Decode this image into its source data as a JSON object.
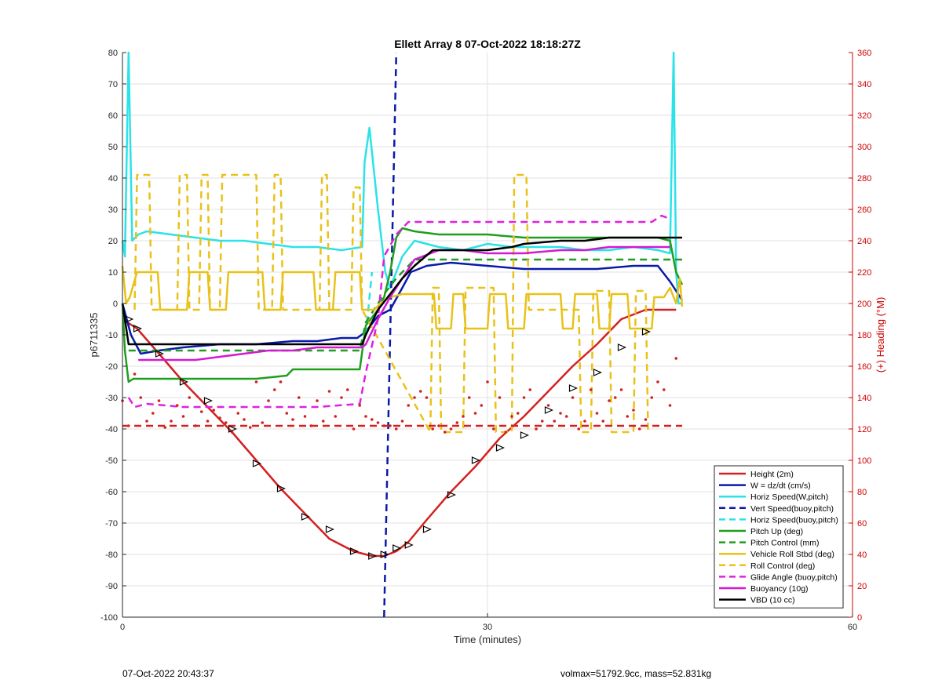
{
  "chart_data": {
    "type": "line",
    "title": "Ellett Array 8 07-Oct-2022 18:18:27Z",
    "xlabel": "Time (minutes)",
    "ylabel": "p6711335",
    "y2label": "(+) Heading (°M)",
    "xlim": [
      0,
      60
    ],
    "ylim": [
      -100,
      80
    ],
    "y2lim": [
      0,
      360
    ],
    "xticks": [
      "0",
      "30",
      "60"
    ],
    "yticks": [
      "80",
      "70",
      "60",
      "50",
      "40",
      "30",
      "20",
      "10",
      "0",
      "-10",
      "-20",
      "-30",
      "-40",
      "-50",
      "-60",
      "-70",
      "-80",
      "-90",
      "-100"
    ],
    "y2ticks": [
      "360",
      "340",
      "320",
      "300",
      "280",
      "260",
      "240",
      "220",
      "200",
      "180",
      "160",
      "140",
      "120",
      "100",
      "80",
      "60",
      "40",
      "20",
      "0"
    ],
    "grid": true,
    "legend_position": "bottom-right",
    "series": [
      {
        "name": "Height (2m)",
        "color": "#d42020",
        "style": "solid",
        "x": [
          0,
          1.2,
          3,
          5,
          7,
          9,
          11,
          13,
          15,
          17,
          19,
          20.5,
          21.5,
          22.5,
          23.5,
          25,
          27,
          29,
          31,
          33,
          35,
          37,
          39,
          41,
          43,
          44.5,
          45.5
        ],
        "y": [
          -5,
          -8,
          -16,
          -25,
          -33,
          -41,
          -50,
          -59,
          -67,
          -75,
          -79,
          -80.5,
          -80.5,
          -79,
          -76,
          -69,
          -60,
          -52,
          -43,
          -36,
          -28,
          -20,
          -13,
          -5,
          -2,
          -2,
          -2
        ]
      },
      {
        "name": "W = dz/dt (cm/s)",
        "color": "#0a1aa8",
        "style": "solid",
        "x": [
          0,
          0.7,
          1.5,
          3,
          5,
          8,
          11,
          14,
          16,
          18,
          19.3,
          20,
          21,
          22,
          23,
          23.7,
          25,
          27,
          30,
          33,
          36,
          39,
          42,
          44,
          45,
          45.5,
          46
        ],
        "y": [
          0,
          -10,
          -16,
          -15,
          -14,
          -13,
          -13,
          -12,
          -12,
          -11,
          -11,
          -9,
          -4,
          -2,
          5,
          10,
          12,
          13,
          12,
          11,
          11,
          11,
          12,
          12,
          7,
          4,
          1
        ]
      },
      {
        "name": "Horiz Speed(W,pitch)",
        "color": "#29e3e8",
        "style": "solid",
        "x": [
          0,
          0.2,
          0.5,
          0.8,
          1.3,
          2,
          4,
          6,
          8,
          10,
          12,
          14,
          16,
          18,
          19.7,
          19.9,
          20.3,
          21,
          21.6,
          22,
          23,
          24,
          26,
          28,
          30,
          32,
          34,
          36,
          38,
          40,
          42,
          44,
          45,
          45.3,
          45.5,
          45.7,
          46
        ],
        "y": [
          20,
          15,
          80,
          20,
          22,
          23,
          22,
          21,
          20,
          20,
          19,
          18,
          18,
          17,
          18,
          45,
          56,
          30,
          10,
          5,
          15,
          20,
          18,
          17,
          19,
          18,
          18,
          18,
          17,
          17,
          18,
          17,
          16,
          80,
          10,
          0,
          0
        ]
      },
      {
        "name": "Vert Speed(buoy,pitch)",
        "color": "#0a1aa8",
        "style": "dashed",
        "x": [
          21.5,
          22.5
        ],
        "y": [
          -100,
          80
        ]
      },
      {
        "name": "Horiz Speed(buoy,pitch)",
        "color": "#29e3e8",
        "style": "dashed",
        "x": [
          20,
          20.5
        ],
        "y": [
          -10,
          10
        ]
      },
      {
        "name": "Pitch Up (deg)",
        "color": "#1f9e1f",
        "style": "solid",
        "x": [
          0,
          0.2,
          0.5,
          0.9,
          2,
          5,
          8,
          11,
          13.5,
          14,
          17,
          19.5,
          20,
          21,
          21.5,
          22,
          22.5,
          23,
          24,
          26,
          28,
          30,
          33,
          36,
          39,
          42,
          44,
          45,
          45.5,
          46
        ],
        "y": [
          0,
          -15,
          -25,
          -24,
          -24,
          -24,
          -24,
          -24,
          -23,
          -21,
          -21,
          -21,
          -7,
          -2,
          2,
          10,
          21,
          24,
          23,
          22,
          22,
          22,
          21,
          21,
          21,
          21,
          21,
          20,
          10,
          6
        ]
      },
      {
        "name": "Pitch Control (mm)",
        "color": "#1f9e1f",
        "style": "dashed",
        "x": [
          0.5,
          6,
          12,
          19.5,
          20,
          21.5,
          22.5,
          24,
          30,
          38,
          46
        ],
        "y": [
          -15,
          -15,
          -15,
          -15,
          -6,
          3,
          8,
          14,
          14,
          14,
          14
        ]
      },
      {
        "name": "Vehicle Roll Stbd (deg)",
        "color": "#e8c21a",
        "style": "solid",
        "x": [
          0,
          0.3,
          0.6,
          1.2,
          2.9,
          3.1,
          5.3,
          5.5,
          7,
          7.2,
          8.5,
          8.7,
          11.5,
          11.7,
          13,
          13.2,
          15.7,
          15.9,
          17.3,
          17.5,
          19.5,
          19.7,
          20.7,
          21.2,
          22,
          23,
          24,
          25,
          25.6,
          25.8,
          27,
          27.2,
          28,
          28.2,
          30,
          30.2,
          31.5,
          31.7,
          33,
          33.2,
          36,
          36.2,
          37,
          37.2,
          39,
          39.2,
          40,
          40.2,
          41.5,
          41.7,
          43.5,
          43.7,
          44.5,
          45,
          45.5,
          45.8,
          46
        ],
        "y": [
          12,
          0,
          2,
          10,
          10,
          -2,
          -2,
          10,
          10,
          -2,
          -2,
          10,
          10,
          -2,
          -2,
          10,
          10,
          -2,
          -2,
          10,
          10,
          -2,
          -2,
          0,
          2,
          3,
          3,
          3,
          3,
          -8,
          -8,
          3,
          3,
          -8,
          -8,
          3,
          3,
          -8,
          -8,
          3,
          3,
          -8,
          -8,
          3,
          3,
          -8,
          -8,
          3,
          3,
          -8,
          -8,
          2,
          2,
          5,
          0,
          8,
          -1
        ]
      },
      {
        "name": "Roll Control (deg)",
        "color": "#e8c21a",
        "style": "dashed",
        "x": [
          1,
          1.2,
          2.2,
          2.4,
          4.5,
          4.7,
          5.3,
          5.5,
          6.3,
          6.5,
          7,
          7.2,
          8,
          8.2,
          11,
          11.2,
          12.3,
          12.5,
          13,
          13.2,
          16.2,
          16.4,
          16.8,
          17,
          18.8,
          19,
          19.5,
          19.7,
          25.3,
          25.5,
          26,
          26.2,
          28,
          28.2,
          30.5,
          30.7,
          32,
          32.2,
          33.2,
          33.4,
          37.5,
          37.7,
          38.5,
          38.7,
          40,
          40.2,
          42,
          42.2,
          43,
          43.2
        ],
        "y": [
          -2,
          41,
          41,
          -2,
          -2,
          41,
          41,
          -2,
          -2,
          41,
          41,
          -2,
          -2,
          41,
          41,
          -2,
          -2,
          41,
          41,
          -2,
          -2,
          41,
          41,
          -2,
          -2,
          37,
          37,
          -2,
          -41,
          5,
          5,
          -41,
          -41,
          5,
          5,
          -41,
          -41,
          41,
          41,
          -2,
          -2,
          -41,
          -41,
          4,
          4,
          -41,
          -41,
          4,
          4,
          -41
        ]
      },
      {
        "name": "Glide Angle (buoy,pitch)",
        "color": "#e020e0",
        "style": "dashed",
        "x": [
          0.5,
          1,
          2,
          5,
          8,
          12,
          16,
          19.5,
          20,
          21,
          21.5,
          22.5,
          23.5,
          24,
          26,
          28,
          30,
          33,
          36,
          39,
          42,
          43.5,
          44.3,
          45
        ],
        "y": [
          -30,
          -33,
          -32,
          -33,
          -33,
          -33,
          -33,
          -32,
          -22,
          -5,
          15,
          22,
          26,
          26,
          26,
          26,
          26,
          26,
          26,
          26,
          26,
          26,
          28,
          27
        ]
      },
      {
        "name": "Buoyancy (10g)",
        "color": "#d21ad2",
        "style": "solid",
        "x": [
          1.3,
          3,
          6,
          8,
          10,
          12,
          14,
          16,
          18,
          19.7,
          20,
          21,
          22,
          23,
          24,
          26,
          28,
          30,
          33,
          36,
          38,
          40,
          42,
          44,
          45
        ],
        "y": [
          -18,
          -18,
          -18,
          -17,
          -16,
          -15,
          -15,
          -14,
          -14,
          -14,
          -13,
          -5,
          2,
          8,
          14,
          17,
          17,
          16,
          16,
          17,
          17,
          18,
          18,
          18,
          18
        ]
      },
      {
        "name": "VBD (10 cc)",
        "color": "#000000",
        "style": "solid",
        "x": [
          0,
          0.2,
          0.5,
          1,
          2,
          5,
          8,
          12,
          16,
          19.7,
          20,
          21,
          22,
          23,
          24,
          25.5,
          26,
          28,
          30,
          32,
          33,
          36,
          38,
          40,
          42,
          44,
          46
        ],
        "y": [
          0,
          -5,
          -13,
          -13,
          -13,
          -13,
          -13,
          -13,
          -13,
          -13,
          -10,
          -2,
          3,
          8,
          12,
          17,
          17,
          17,
          17,
          18,
          19,
          20,
          20,
          21,
          21,
          21,
          21
        ]
      },
      {
        "name": "Heading",
        "color": "#d42020",
        "style": "dotted",
        "axis": "right",
        "x": [
          0,
          0.5,
          1,
          1.5,
          2,
          2.5,
          3,
          3.5,
          4,
          4.5,
          5,
          5.5,
          6,
          6.5,
          7,
          7.5,
          8,
          8.5,
          9,
          9.5,
          10,
          10.5,
          11,
          11.5,
          12,
          12.5,
          13,
          13.5,
          14,
          14.5,
          15,
          15.5,
          16,
          16.5,
          17,
          17.5,
          18,
          18.5,
          19,
          19.5,
          20,
          20.5,
          21,
          21.5,
          22,
          22.5,
          23,
          23.5,
          24,
          24.5,
          25,
          25.5,
          26,
          26.5,
          27,
          27.5,
          28,
          28.5,
          29,
          29.5,
          30,
          30.5,
          31,
          31.5,
          32,
          32.5,
          33,
          33.5,
          34,
          34.5,
          35,
          35.5,
          36,
          36.5,
          37,
          37.5,
          38,
          38.5,
          39,
          39.5,
          40,
          40.5,
          41,
          41.5,
          42,
          42.5,
          43,
          43.5,
          44,
          44.5,
          45,
          45.5
        ],
        "y": [
          138,
          122,
          155,
          140,
          125,
          130,
          138,
          121,
          125,
          135,
          128,
          140,
          122,
          131,
          125,
          132,
          127,
          124,
          118,
          130,
          126,
          121,
          150,
          124,
          138,
          145,
          150,
          130,
          126,
          140,
          128,
          122,
          138,
          125,
          144,
          128,
          140,
          145,
          120,
          135,
          128,
          126,
          124,
          122,
          122,
          120,
          125,
          135,
          140,
          144,
          140,
          120,
          122,
          118,
          120,
          124,
          128,
          140,
          130,
          135,
          150,
          120,
          140,
          118,
          128,
          130,
          140,
          145,
          120,
          125,
          135,
          125,
          130,
          128,
          140,
          120,
          125,
          145,
          130,
          125,
          138,
          140,
          145,
          128,
          132,
          120,
          126,
          140,
          150,
          145,
          135,
          165
        ]
      },
      {
        "name": "Heading ref",
        "color": "#d42020",
        "style": "dashed",
        "axis": "right",
        "x": [
          0,
          46
        ],
        "y": [
          122,
          122
        ]
      }
    ],
    "markers": {
      "name": "Height (2m) markers",
      "x": [
        0.5,
        1.2,
        3,
        5,
        7,
        9,
        11,
        13,
        15,
        17,
        19,
        20.5,
        21.5,
        22.5,
        23.5,
        25,
        27,
        29,
        31,
        33,
        35,
        37,
        39,
        41,
        43
      ],
      "y": [
        -5,
        -8,
        -16,
        -25,
        -31,
        -40,
        -51,
        -59,
        -68,
        -72,
        -79,
        -80.5,
        -80,
        -78,
        -77,
        -72,
        -61,
        -50,
        -46,
        -42,
        -34,
        -27,
        -22,
        -14,
        -9
      ]
    }
  },
  "footer": {
    "left": "07-Oct-2022 20:43:37",
    "right": "volmax=51792.9cc, mass=52.831kg"
  }
}
